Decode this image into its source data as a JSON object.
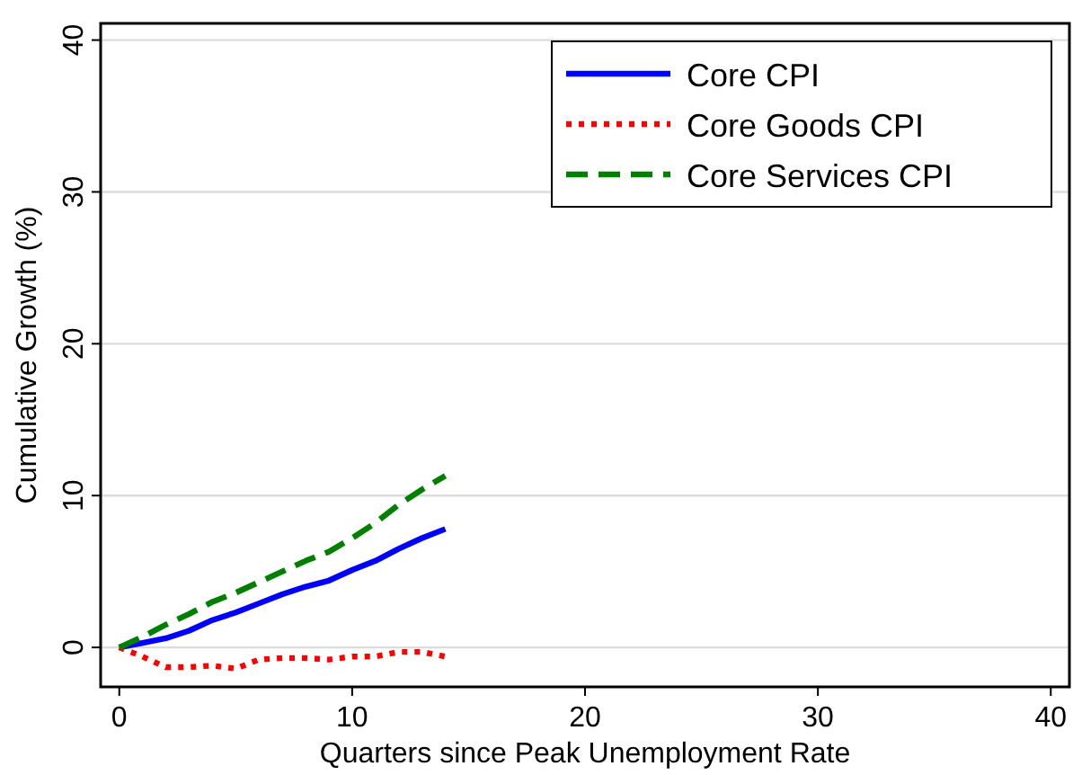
{
  "chart_data": {
    "type": "line",
    "xlabel": "Quarters since Peak Unemployment Rate",
    "ylabel": "Cumulative Growth (%)",
    "x": [
      0,
      1,
      2,
      3,
      4,
      5,
      6,
      7,
      8,
      9,
      10,
      11,
      12,
      13,
      14
    ],
    "series": [
      {
        "name": "Core CPI",
        "color": "#0000ff",
        "line_style": "solid",
        "values": [
          0,
          0.3,
          0.6,
          1.1,
          1.8,
          2.3,
          2.9,
          3.5,
          4.0,
          4.4,
          5.1,
          5.7,
          6.5,
          7.2,
          7.8
        ]
      },
      {
        "name": "Core Goods CPI",
        "color": "#ff0000",
        "line_style": "dotted",
        "values": [
          0,
          -0.6,
          -1.3,
          -1.3,
          -1.2,
          -1.4,
          -0.8,
          -0.7,
          -0.7,
          -0.8,
          -0.6,
          -0.6,
          -0.3,
          -0.3,
          -0.6
        ]
      },
      {
        "name": "Core Services CPI",
        "color": "#008000",
        "line_style": "dashed",
        "values": [
          0,
          0.7,
          1.5,
          2.2,
          3.0,
          3.6,
          4.3,
          5.0,
          5.7,
          6.3,
          7.2,
          8.2,
          9.4,
          10.4,
          11.3
        ]
      }
    ],
    "xlim": [
      -0.8,
      40.8
    ],
    "ylim": [
      -2.6,
      41.1
    ],
    "xticks": [
      0,
      10,
      20,
      30,
      40
    ],
    "yticks": [
      0,
      10,
      20,
      30,
      40
    ],
    "grid": "y",
    "legend": "top right"
  }
}
